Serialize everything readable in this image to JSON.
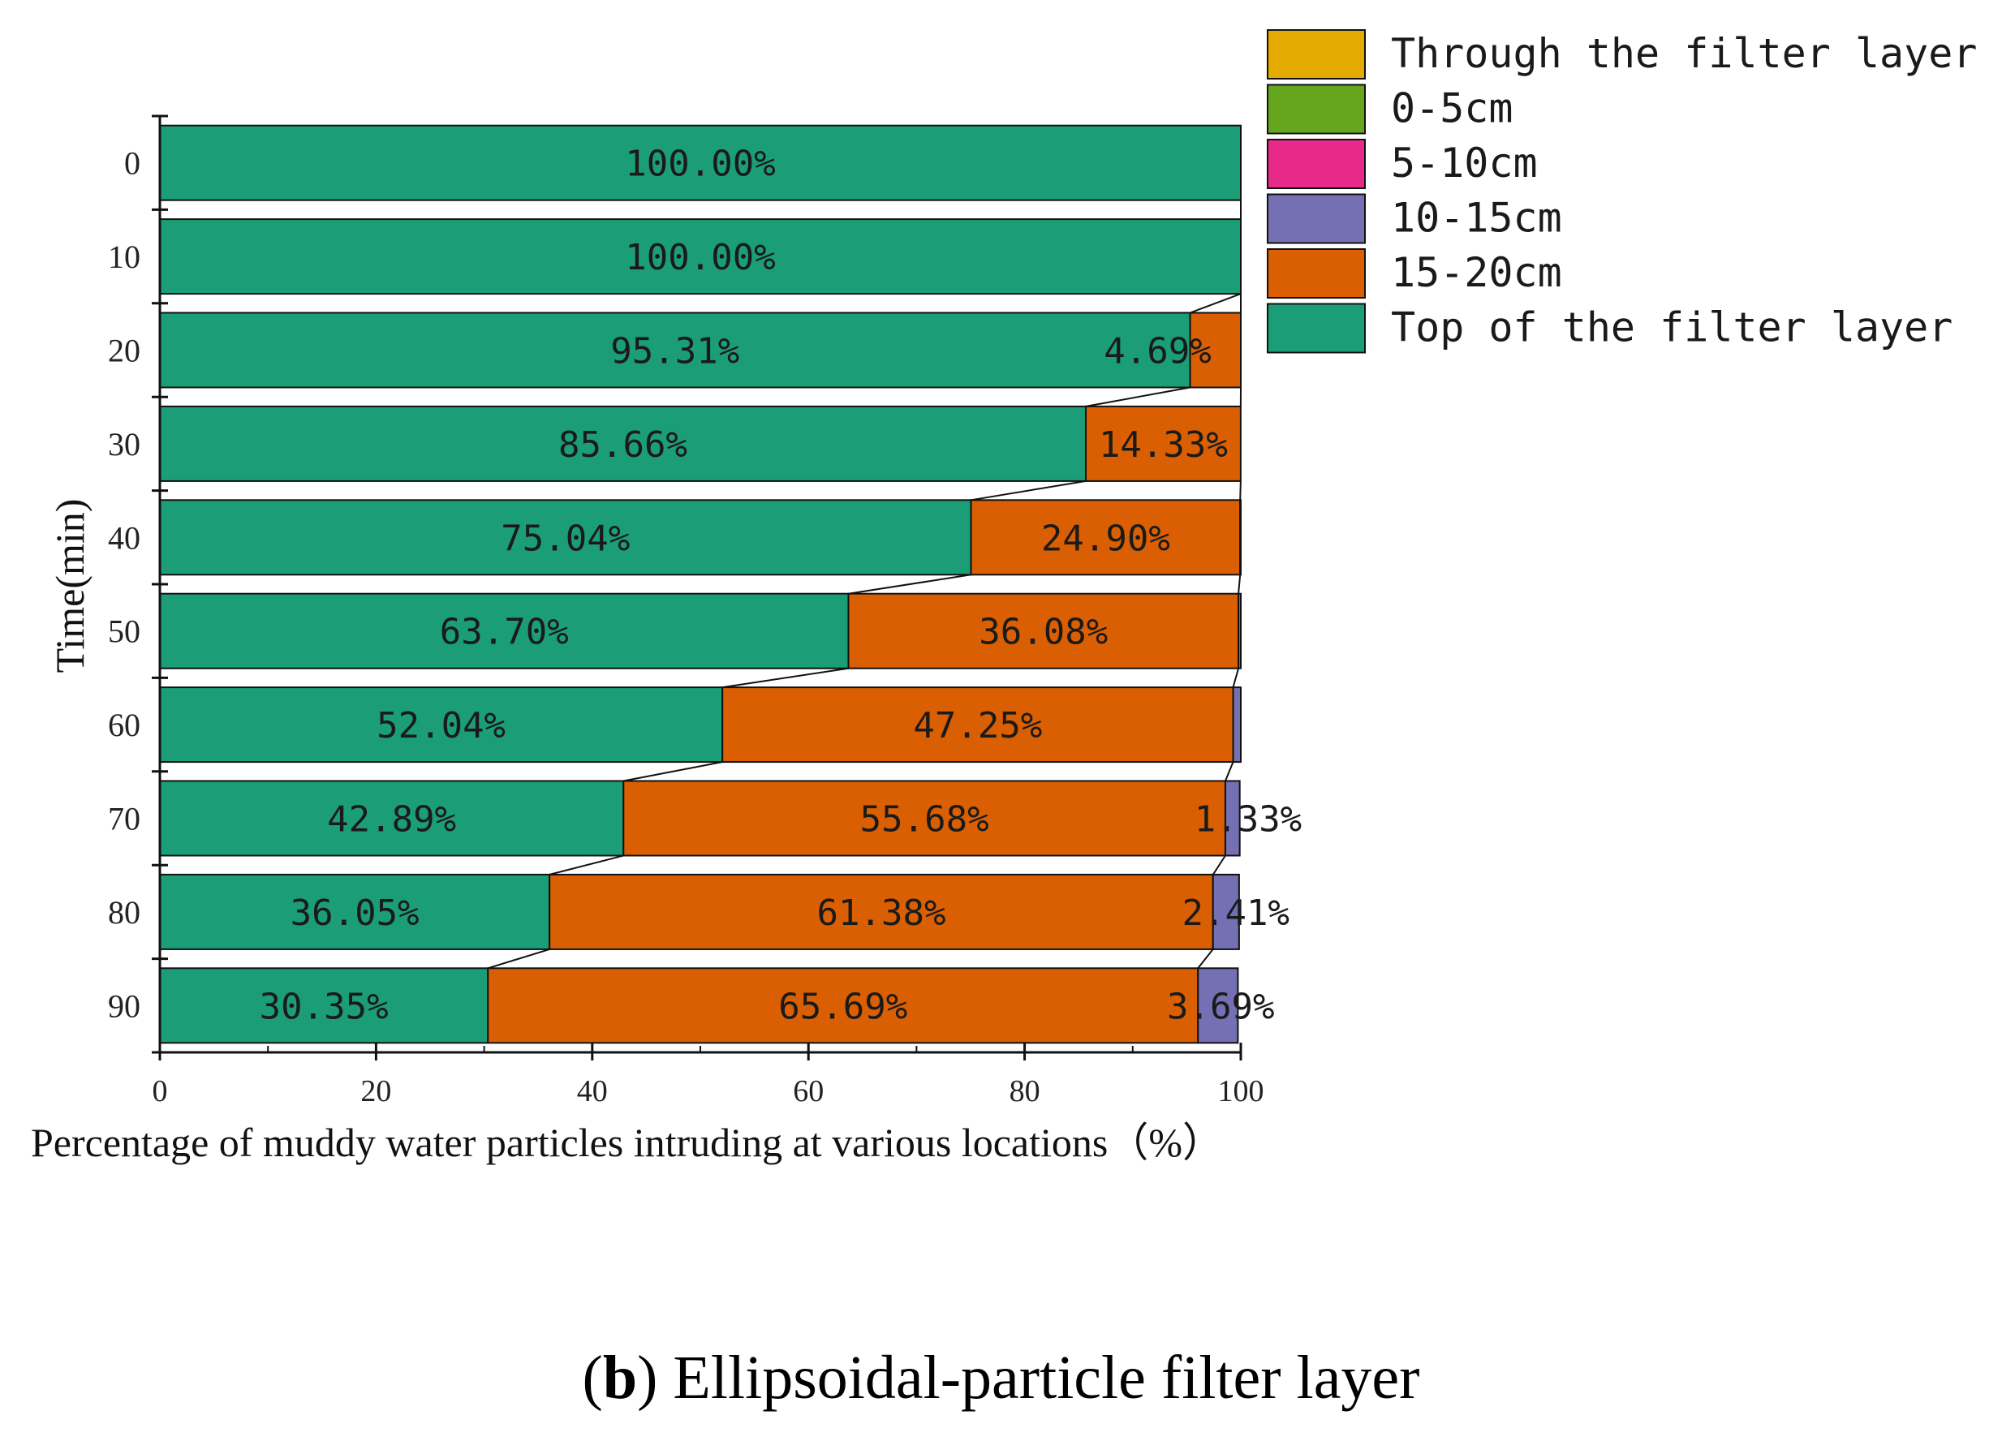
{
  "chart_data": {
    "type": "bar",
    "orientation": "horizontal",
    "stacked": true,
    "categories": [
      "0",
      "10",
      "20",
      "30",
      "40",
      "50",
      "60",
      "70",
      "80",
      "90"
    ],
    "series": [
      {
        "name": "Top of the filter layer",
        "color": "#1b9e77",
        "values": [
          100.0,
          100.0,
          95.31,
          85.66,
          75.04,
          63.7,
          52.04,
          42.89,
          36.05,
          30.35
        ],
        "labels": [
          "100.00%",
          "100.00%",
          "95.31%",
          "85.66%",
          "75.04%",
          "63.70%",
          "52.04%",
          "42.89%",
          "36.05%",
          "30.35%"
        ]
      },
      {
        "name": "15-20cm",
        "color": "#d95f02",
        "values": [
          0,
          0,
          4.69,
          14.33,
          24.9,
          36.08,
          47.25,
          55.68,
          61.38,
          65.69
        ],
        "labels": [
          "",
          "",
          "4.69%",
          "14.33%",
          "24.90%",
          "36.08%",
          "47.25%",
          "55.68%",
          "61.38%",
          "65.69%"
        ]
      },
      {
        "name": "10-15cm",
        "color": "#7570b3",
        "values": [
          0,
          0,
          0,
          0,
          0.06,
          0.22,
          0.71,
          1.33,
          2.41,
          3.69
        ],
        "labels": [
          "",
          "",
          "",
          "",
          "",
          "",
          "",
          "1.33%",
          "2.41%",
          "3.69%"
        ]
      },
      {
        "name": "5-10cm",
        "color": "#e7298a",
        "values": [
          0,
          0,
          0,
          0,
          0,
          0,
          0,
          0,
          0,
          0
        ]
      },
      {
        "name": "0-5cm",
        "color": "#66a61e",
        "values": [
          0,
          0,
          0,
          0,
          0,
          0,
          0,
          0,
          0,
          0
        ]
      },
      {
        "name": "Through the filter layer",
        "color": "#e6ab02",
        "values": [
          0,
          0,
          0,
          0,
          0,
          0,
          0,
          0,
          0,
          0
        ]
      }
    ],
    "legend_order": [
      "Through the filter layer",
      "0-5cm",
      "5-10cm",
      "10-15cm",
      "15-20cm",
      "Top of the filter layer"
    ],
    "legend_position": "top-right",
    "xlabel": "Percentage of muddy water particles intruding at various locations（%）",
    "ylabel": "Time(min)",
    "xlim": [
      0,
      100
    ],
    "xticks": [
      0,
      20,
      40,
      60,
      80,
      100
    ],
    "grid": false,
    "connector_lines": true
  },
  "caption": {
    "label": "b",
    "open": "(",
    "close": ")",
    "text": " Ellipsoidal-particle filter layer"
  }
}
